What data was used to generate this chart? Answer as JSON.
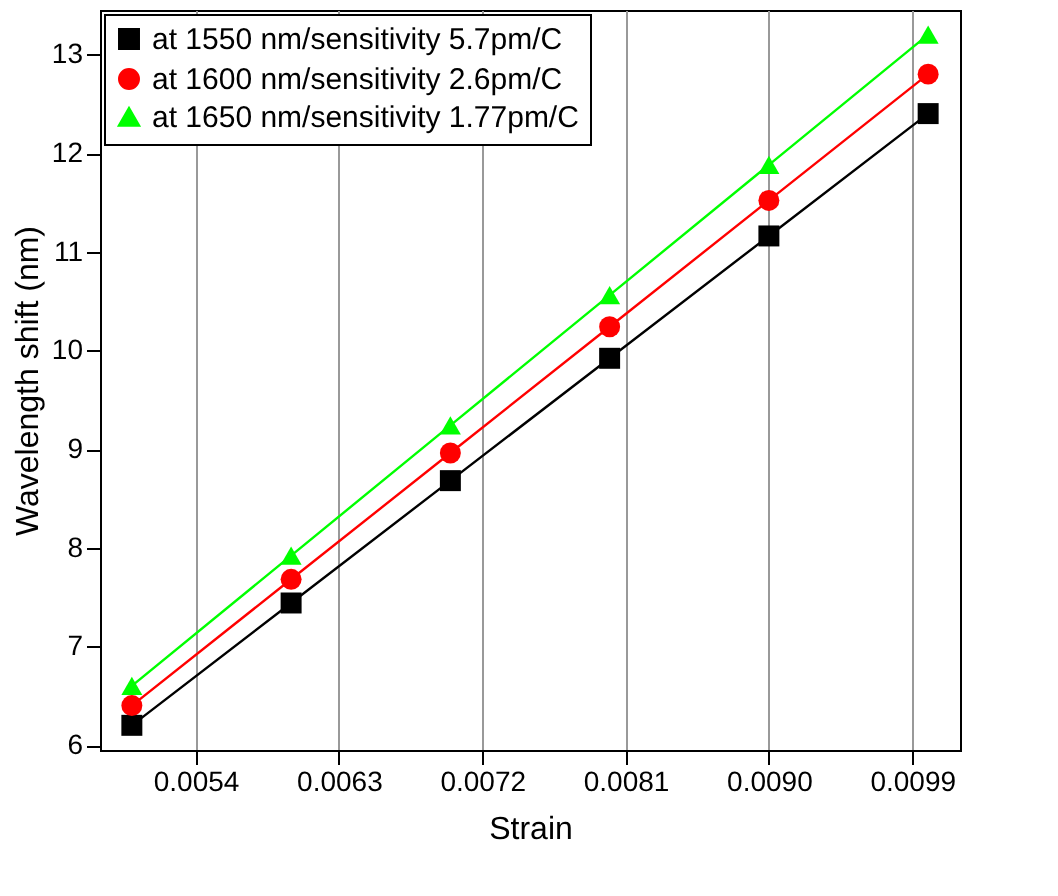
{
  "chart_data": {
    "type": "line",
    "xlabel": "Strain",
    "ylabel": "Wavelength shift (nm)",
    "x": [
      0.005,
      0.006,
      0.007,
      0.008,
      0.009,
      0.01
    ],
    "series": [
      {
        "name": "at 1550 nm/sensitivity 5.7pm/C",
        "color": "#000000",
        "marker": "square",
        "values": [
          6.2,
          7.44,
          8.68,
          9.92,
          11.16,
          12.4
        ]
      },
      {
        "name": "at 1600 nm/sensitivity 2.6pm/C",
        "color": "#ff0000",
        "marker": "circle",
        "values": [
          6.4,
          7.68,
          8.96,
          10.24,
          11.52,
          12.8
        ]
      },
      {
        "name": "at 1650 nm/sensitivity 1.77pm/C",
        "color": "#00ff00",
        "marker": "triangle",
        "values": [
          6.6,
          7.92,
          9.24,
          10.56,
          11.88,
          13.2
        ]
      }
    ],
    "xlim": [
      0.0048,
      0.0102
    ],
    "xticks": [
      {
        "value": 0.0054,
        "label": "0.0054"
      },
      {
        "value": 0.0063,
        "label": "0.0063"
      },
      {
        "value": 0.0072,
        "label": "0.0072"
      },
      {
        "value": 0.0081,
        "label": "0.0081"
      },
      {
        "value": 0.009,
        "label": "0.0090"
      },
      {
        "value": 0.0099,
        "label": "0.0099"
      }
    ],
    "ylim": [
      5.95,
      13.45
    ],
    "yticks": [
      6,
      7,
      8,
      9,
      10,
      11,
      12,
      13
    ],
    "grid": "x",
    "legend": "top left",
    "line_style": "solid"
  }
}
